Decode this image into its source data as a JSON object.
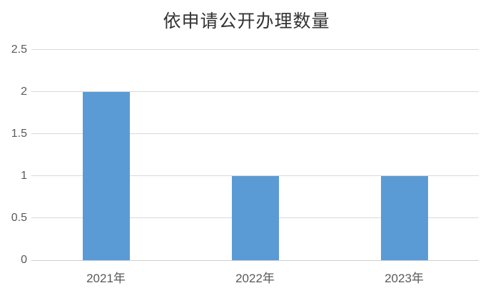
{
  "chart_data": {
    "type": "bar",
    "title": "依申请公开办理数量",
    "categories": [
      "2021年",
      "2022年",
      "2023年"
    ],
    "values": [
      2,
      1,
      1
    ],
    "xlabel": "",
    "ylabel": "",
    "ylim": [
      0,
      2.5
    ],
    "ytick_step": 0.5,
    "ytick_labels": [
      "0",
      "0.5",
      "1",
      "1.5",
      "2",
      "2.5"
    ],
    "grid": "horizontal",
    "legend_position": "none",
    "colors": {
      "bar": "#5b9bd5",
      "gridline": "#d9d9d9",
      "tick_label": "#595959",
      "title": "#333333",
      "background": "#ffffff"
    }
  }
}
